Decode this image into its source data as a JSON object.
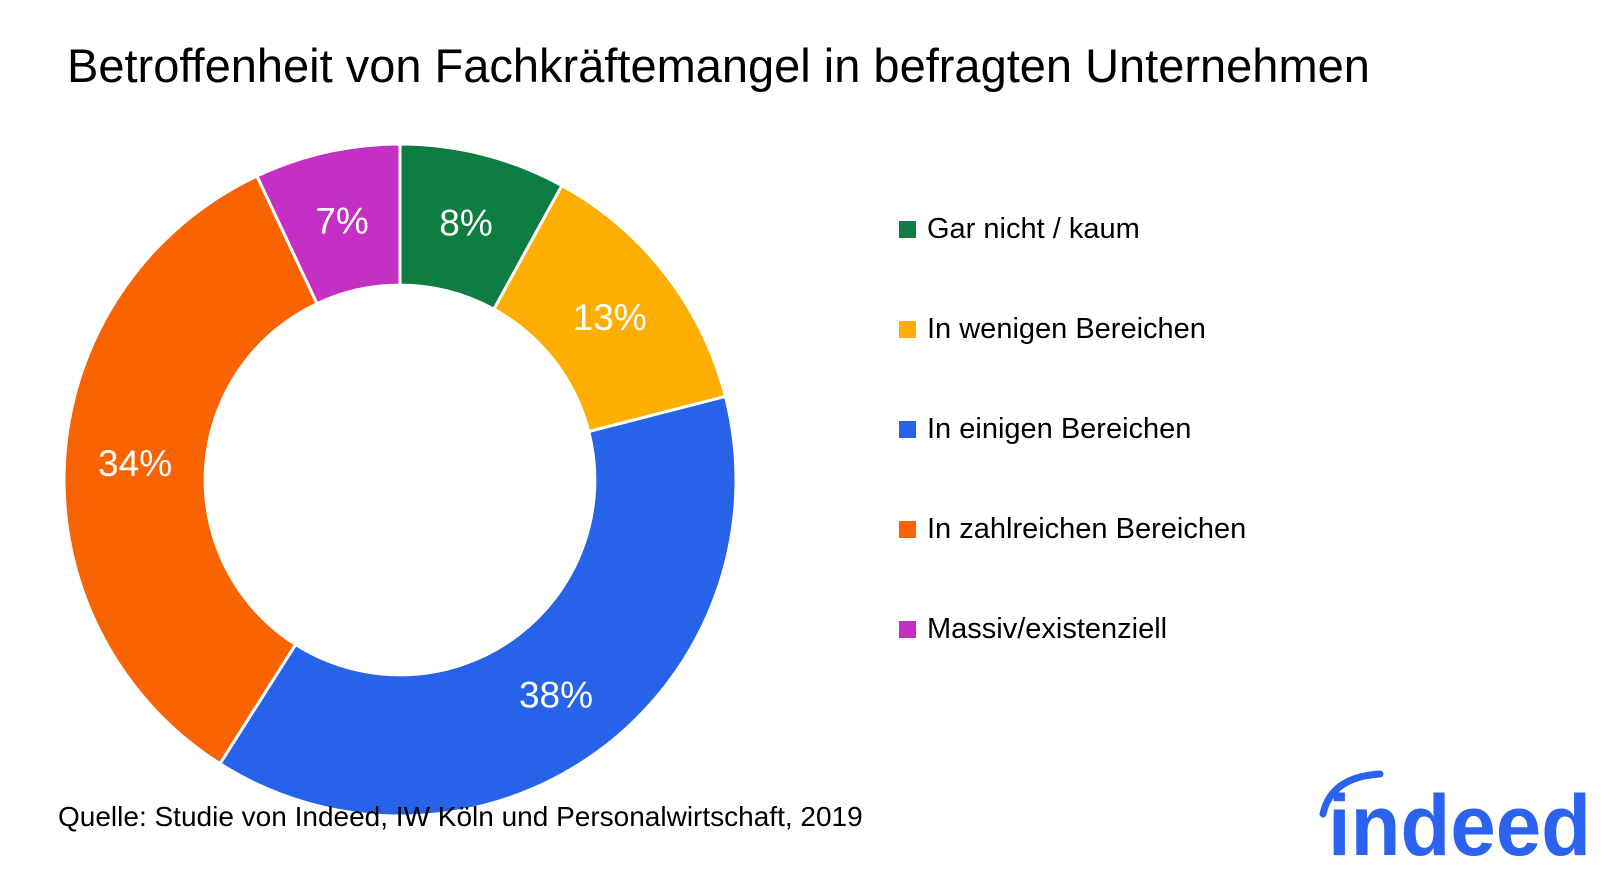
{
  "title": "Betroffenheit von Fachkräftemangel in befragten Unternehmen",
  "source": "Quelle: Studie von Indeed, IW Köln und Personalwirtschaft, 2019",
  "logo": {
    "text": "indeed",
    "color": "#2c63ee"
  },
  "chart_data": {
    "type": "pie",
    "subtype": "donut",
    "title": "Betroffenheit von Fachkräftemangel in befragten Unternehmen",
    "categories": [
      "Gar nicht / kaum",
      "In wenigen Bereichen",
      "In einigen Bereichen",
      "In zahlreichen Bereichen",
      "Massiv/existenziell"
    ],
    "values": [
      8,
      13,
      38,
      34,
      7
    ],
    "unit": "%",
    "labels": [
      "8%",
      "13%",
      "38%",
      "34%",
      "7%"
    ],
    "colors": [
      "#0d7d41",
      "#fcaf02",
      "#2663e8",
      "#f96302",
      "#c42fc4"
    ],
    "start_angle_deg": 0,
    "direction": "clockwise",
    "inner_radius_ratio": 0.58,
    "label_color": "#ffffff",
    "label_font_size": 37,
    "legend_position": "right",
    "background": "#ffffff"
  }
}
